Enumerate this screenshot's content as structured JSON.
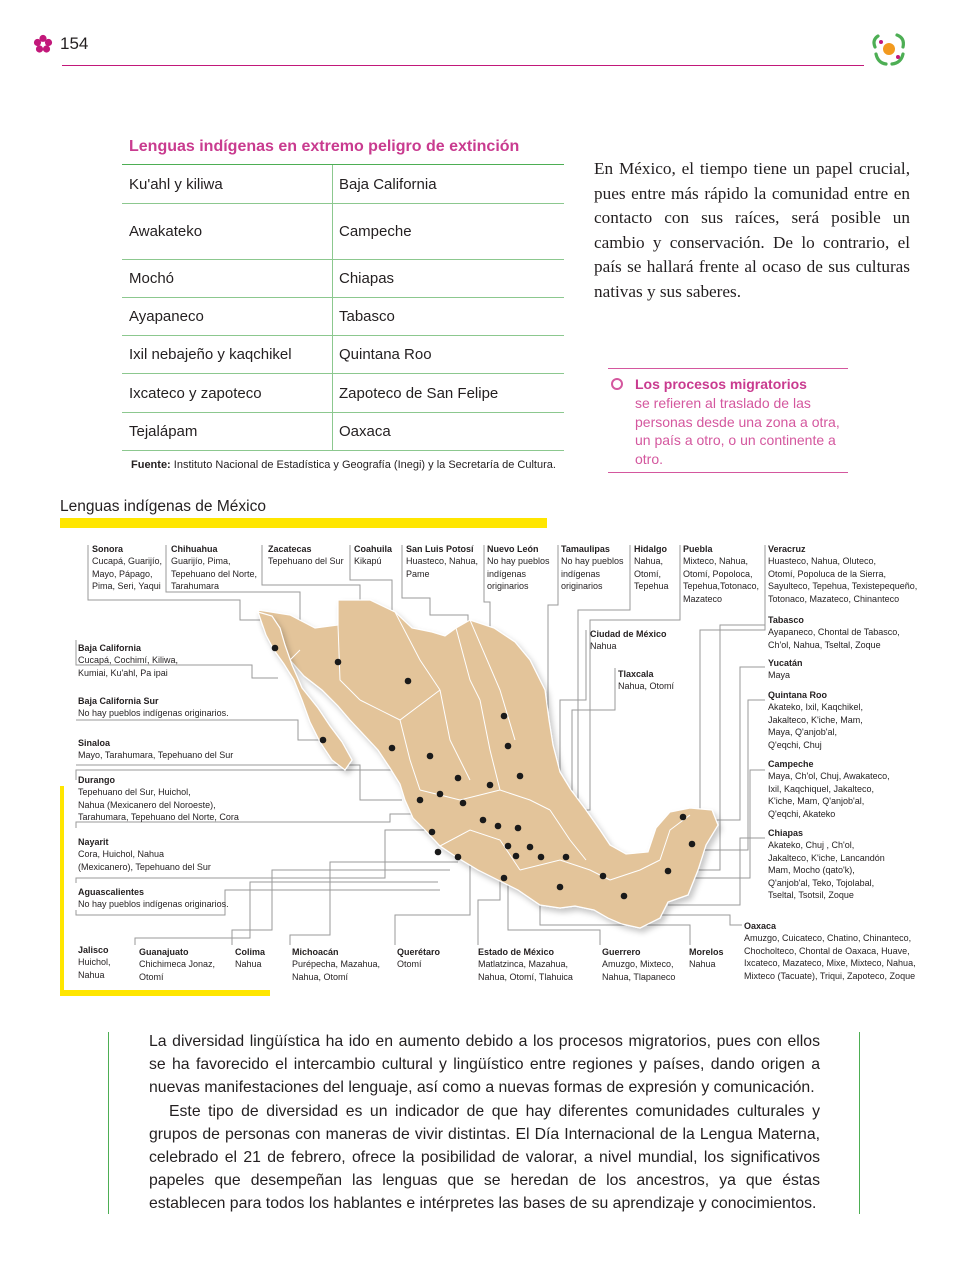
{
  "header": {
    "page_number": "154"
  },
  "table": {
    "title": "Lenguas indígenas en extremo peligro de extinción",
    "rows": [
      [
        "Ku'ahl y kiliwa",
        "Baja California"
      ],
      [
        "Awakateko",
        "Campeche"
      ],
      [
        "Mochó",
        "Chiapas"
      ],
      [
        "Ayapaneco",
        "Tabasco"
      ],
      [
        "Ixil nebajeño y kaqchikel",
        "Quintana Roo"
      ],
      [
        "Ixcateco y zapoteco",
        "Zapoteco de San Felipe"
      ],
      [
        "Tejalápam",
        "Oaxaca"
      ]
    ],
    "source_label": "Fuente:",
    "source_text": "Instituto Nacional de Estadística y Geografía (Inegi) y la Secretaría de Cultura."
  },
  "intro_paragraph": "En México, el tiempo tiene un papel crucial, pues entre más rápido la comunidad entre en contacto con sus raíces, será posible un cambio y conservación. De lo contrario, el país se hallará frente al ocaso de sus culturas nativas y sus saberes.",
  "glossary": {
    "term": "Los procesos migratorios",
    "definition": "se refieren al traslado de las personas desde una zona a otra, un país a otro, o un continente a otro."
  },
  "map": {
    "title": "Lenguas indígenas de México",
    "colors": {
      "land": "#e3c49a",
      "border": "#ffffff",
      "dot": "#1a1a1a",
      "leader": "#9a9a9a"
    },
    "states": [
      {
        "name": "Sonora",
        "langs": [
          "Cucapá, Guarijío,",
          "Mayo, Pápago,",
          "Pima, Seri, Yaqui"
        ]
      },
      {
        "name": "Chihuahua",
        "langs": [
          "Guarijío, Pima,",
          "Tepehuano del Norte,",
          "Tarahumara"
        ]
      },
      {
        "name": "Zacatecas",
        "langs": [
          "Tepehuano del Sur"
        ]
      },
      {
        "name": "Coahuila",
        "langs": [
          "Kikapú"
        ]
      },
      {
        "name": "San Luis Potosí",
        "langs": [
          "Huasteco, Nahua,",
          "Pame"
        ]
      },
      {
        "name": "Nuevo León",
        "langs": [
          "No hay pueblos",
          "indígenas",
          "originarios"
        ]
      },
      {
        "name": "Tamaulipas",
        "langs": [
          "No hay pueblos",
          "indígenas",
          "originarios"
        ]
      },
      {
        "name": "Hidalgo",
        "langs": [
          "Nahua,",
          "Otomí,",
          "Tepehua"
        ]
      },
      {
        "name": "Puebla",
        "langs": [
          "Mixteco, Nahua,",
          "Otomí, Popoloca,",
          "Tepehua,Totonaco,",
          "Mazateco"
        ]
      },
      {
        "name": "Veracruz",
        "langs": [
          "Huasteco, Nahua, Oluteco,",
          "Otomí, Popoluca de la Sierra,",
          "Sayulteco, Tepehua, Texistepequeño,",
          "Totonaco, Mazateco, Chinanteco"
        ]
      },
      {
        "name": "Tabasco",
        "langs": [
          "Ayapaneco, Chontal de Tabasco,",
          "Ch'ol, Nahua, Tseltal, Zoque"
        ]
      },
      {
        "name": "Yucatán",
        "langs": [
          "Maya"
        ]
      },
      {
        "name": "Quintana Roo",
        "langs": [
          "Akateko, Ixil, Kaqchikel,",
          "Jakalteco, K'iche, Mam,",
          "Maya, Q'anjob'al,",
          "Q'eqchi, Chuj"
        ]
      },
      {
        "name": "Campeche",
        "langs": [
          "Maya, Ch'ol, Chuj, Awakateco,",
          "Ixil, Kaqchiquel,  Jakalteco,",
          "K'iche, Mam, Q'anjob'al,",
          "Q'eqchi, Akateko"
        ]
      },
      {
        "name": "Chiapas",
        "langs": [
          "Akateko, Chuj , Ch'ol,",
          "Jakalteco, K'iche, Lancandón",
          "Mam, Mocho (qato'k),",
          "Q'anjob'al, Teko, Tojolabal,",
          "Tseltal, Tsotsil, Zoque"
        ]
      },
      {
        "name": "Oaxaca",
        "langs": [
          "Amuzgo, Cuicateco, Chatino, Chinanteco,",
          "Chocholteco, Chontal de Oaxaca, Huave,",
          "Ixcateco, Mazateco, Mixe, Mixteco,  Nahua,",
          "Mixteco (Tacuate), Triqui, Zapoteco, Zoque"
        ]
      },
      {
        "name": "Ciudad de México",
        "langs": [
          "Nahua"
        ]
      },
      {
        "name": "Tlaxcala",
        "langs": [
          "Nahua, Otomí"
        ]
      },
      {
        "name": "Baja California",
        "langs": [
          "Cucapá, Cochimí, Kiliwa,",
          "Kumiai, Ku'ahl, Pa ipai"
        ]
      },
      {
        "name": "Baja California Sur",
        "langs": [
          "No hay pueblos indígenas originarios."
        ]
      },
      {
        "name": "Sinaloa",
        "langs": [
          "Mayo, Tarahumara, Tepehuano del Sur"
        ]
      },
      {
        "name": "Durango",
        "langs": [
          "Tepehuano del Sur, Huichol,",
          "Nahua (Mexicanero del Noroeste),",
          "Tarahumara, Tepehuano del Norte, Cora"
        ]
      },
      {
        "name": "Nayarit",
        "langs": [
          "Cora, Huichol, Nahua",
          "(Mexicanero), Tepehuano del Sur"
        ]
      },
      {
        "name": "Aguascalientes",
        "langs": [
          "No hay pueblos indígenas originarios."
        ]
      },
      {
        "name": "Jalisco",
        "langs": [
          "Huichol,",
          "Nahua"
        ]
      },
      {
        "name": "Guanajuato",
        "langs": [
          "Chichimeca Jonaz,",
          "Otomí"
        ]
      },
      {
        "name": "Colima",
        "langs": [
          "Nahua"
        ]
      },
      {
        "name": "Michoacán",
        "langs": [
          "Purépecha, Mazahua,",
          "Nahua, Otomí"
        ]
      },
      {
        "name": "Querétaro",
        "langs": [
          "Otomí"
        ]
      },
      {
        "name": "Estado de México",
        "langs": [
          "Matlatzinca, Mazahua,",
          "Nahua, Otomí, Tlahuica"
        ]
      },
      {
        "name": "Guerrero",
        "langs": [
          "Amuzgo, Mixteco,",
          "Nahua, Tlapaneco"
        ]
      },
      {
        "name": "Morelos",
        "langs": [
          "Nahua"
        ]
      }
    ]
  },
  "bottom_paragraphs": [
    "La diversidad lingüística ha ido en aumento debido a los procesos migratorios, pues con ellos se ha favorecido el intercambio cultural y lingüístico entre regiones y países, dando origen a nuevas manifestaciones del lenguaje, así como a nuevas formas de expresión y comunicación.",
    "Este tipo de diversidad es un indicador de que hay diferentes comunidades culturales y grupos de personas con maneras de vivir distintas. El Día Internacional de la Lengua Materna, celebrado el 21 de febrero, ofrece la posibilidad de valorar, a nivel mundial, los significativos papeles que desempeñan las lenguas que se heredan de los ancestros, ya que éstas establecen para todos los hablantes e intérpretes las bases de su aprendizaje y conocimientos."
  ]
}
